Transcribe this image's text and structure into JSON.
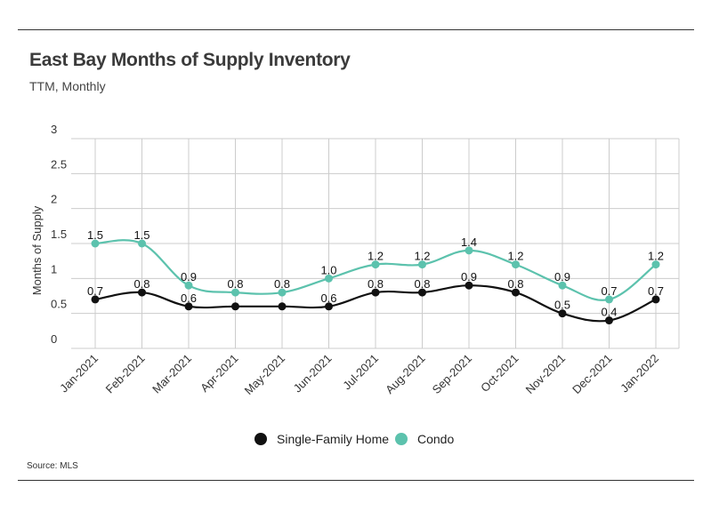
{
  "header": {
    "title": "East Bay Months of Supply Inventory",
    "subtitle": "TTM, Monthly"
  },
  "footer": {
    "source": "Source:  MLS"
  },
  "colors": {
    "single_family": "#111111",
    "condo": "#5cc2ad",
    "grid": "#cccccc"
  },
  "chart_data": {
    "type": "line",
    "title": "East Bay Months of Supply Inventory",
    "subtitle": "TTM, Monthly",
    "ylabel": "Months of Supply",
    "xlabel": "",
    "categories": [
      "Jan-2021",
      "Feb-2021",
      "Mar-2021",
      "Apr-2021",
      "May-2021",
      "Jun-2021",
      "Jul-2021",
      "Aug-2021",
      "Sep-2021",
      "Oct-2021",
      "Nov-2021",
      "Dec-2021",
      "Jan-2022"
    ],
    "ylim": [
      0,
      3
    ],
    "yticks": [
      "0",
      "0.5",
      "1",
      "1.5",
      "2",
      "2.5",
      "3"
    ],
    "grid": true,
    "legend_position": "bottom-center",
    "series": [
      {
        "name": "Single-Family Home",
        "color": "#111111",
        "values": [
          0.7,
          0.8,
          0.6,
          0.6,
          0.6,
          0.6,
          0.8,
          0.8,
          0.9,
          0.8,
          0.5,
          0.4,
          0.7
        ],
        "labels": [
          "0.7",
          "0.8",
          "0.6",
          "",
          "",
          "0.6",
          "0.8",
          "0.8",
          "0.9",
          "0.8",
          "0.5",
          "0.4",
          "0.7"
        ]
      },
      {
        "name": "Condo",
        "color": "#5cc2ad",
        "values": [
          1.5,
          1.5,
          0.9,
          0.8,
          0.8,
          1.0,
          1.2,
          1.2,
          1.4,
          1.2,
          0.9,
          0.7,
          1.2
        ],
        "labels": [
          "1.5",
          "1.5",
          "0.9",
          "0.8",
          "0.8",
          "1.0",
          "1.2",
          "1.2",
          "1.4",
          "1.2",
          "0.9",
          "0.7",
          "1.2"
        ]
      }
    ]
  }
}
